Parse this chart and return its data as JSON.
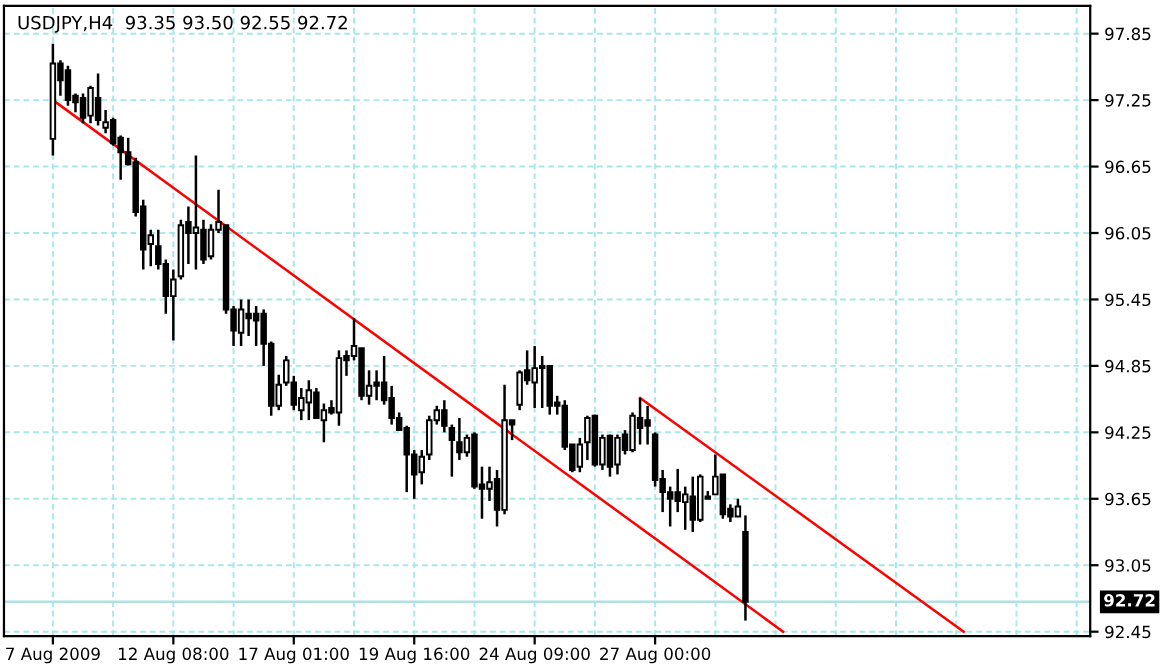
{
  "chart_data": {
    "type": "candlestick",
    "title": "USDJPY,H4  93.35 93.50 92.55 92.72",
    "categories": [
      "7 Aug 2009",
      null,
      null,
      null,
      null,
      null,
      null,
      null,
      null,
      null,
      null,
      null,
      null,
      null,
      null,
      null,
      "12 Aug 08:00",
      null,
      null,
      null,
      null,
      null,
      null,
      null,
      null,
      null,
      null,
      null,
      null,
      null,
      null,
      null,
      "17 Aug 01:00",
      null,
      null,
      null,
      null,
      null,
      null,
      null,
      null,
      null,
      null,
      null,
      null,
      null,
      null,
      null,
      "19 Aug 16:00",
      null,
      null,
      null,
      null,
      null,
      null,
      null,
      null,
      null,
      null,
      null,
      null,
      null,
      null,
      null,
      "24 Aug 09:00",
      null,
      null,
      null,
      null,
      null,
      null,
      null,
      null,
      null,
      null,
      null,
      null,
      null,
      null,
      null,
      "27 Aug 00:00",
      null,
      null,
      null,
      null,
      null,
      null,
      null,
      null,
      null,
      null,
      null,
      null,
      null,
      null,
      null,
      null,
      null,
      null,
      null,
      null,
      null,
      null,
      null,
      null,
      null,
      null,
      null,
      null,
      null,
      null,
      null,
      null,
      null,
      null,
      null,
      null,
      null,
      null,
      null,
      null,
      null,
      null,
      null,
      null,
      null,
      null,
      null,
      null,
      null,
      null,
      null,
      null,
      null,
      null,
      null,
      null,
      null
    ],
    "ohlc": [
      [
        96.9,
        97.76,
        96.75,
        97.58
      ],
      [
        97.58,
        97.61,
        97.29,
        97.43
      ],
      [
        97.52,
        97.56,
        97.2,
        97.25
      ],
      [
        97.29,
        97.31,
        97.14,
        97.23
      ],
      [
        97.27,
        97.31,
        97.04,
        97.09
      ],
      [
        97.11,
        97.38,
        97.04,
        97.36
      ],
      [
        97.27,
        97.49,
        97.02,
        97.07
      ],
      [
        97.0,
        97.16,
        96.95,
        97.05
      ],
      [
        97.07,
        97.09,
        96.84,
        96.86
      ],
      [
        96.91,
        96.93,
        96.53,
        96.78
      ],
      [
        96.78,
        96.91,
        96.66,
        96.67
      ],
      [
        96.69,
        96.73,
        96.2,
        96.24
      ],
      [
        96.29,
        96.35,
        95.72,
        95.9
      ],
      [
        95.95,
        96.08,
        95.75,
        96.03
      ],
      [
        95.93,
        96.08,
        95.72,
        95.77
      ],
      [
        95.77,
        95.81,
        95.32,
        95.48
      ],
      [
        95.48,
        95.72,
        95.08,
        95.63
      ],
      [
        95.66,
        96.17,
        95.63,
        96.12
      ],
      [
        96.15,
        96.29,
        95.77,
        96.05
      ],
      [
        96.05,
        96.75,
        95.72,
        96.1
      ],
      [
        96.08,
        96.17,
        95.77,
        95.81
      ],
      [
        95.84,
        96.13,
        95.81,
        96.08
      ],
      [
        96.08,
        96.44,
        96.05,
        96.15
      ],
      [
        96.12,
        96.12,
        95.32,
        95.36
      ],
      [
        95.36,
        95.39,
        95.03,
        95.17
      ],
      [
        95.15,
        95.45,
        95.03,
        95.36
      ],
      [
        95.32,
        95.45,
        95.12,
        95.28
      ],
      [
        95.32,
        95.39,
        95.03,
        95.26
      ],
      [
        95.32,
        95.36,
        94.85,
        95.05
      ],
      [
        95.05,
        95.07,
        94.4,
        94.49
      ],
      [
        94.49,
        94.77,
        94.45,
        94.68
      ],
      [
        94.7,
        94.94,
        94.67,
        94.9
      ],
      [
        94.7,
        94.76,
        94.45,
        94.5
      ],
      [
        94.45,
        94.65,
        94.36,
        94.56
      ],
      [
        94.52,
        94.72,
        94.36,
        94.63
      ],
      [
        94.61,
        94.65,
        94.38,
        94.38
      ],
      [
        94.36,
        94.51,
        94.16,
        94.45
      ],
      [
        94.47,
        94.54,
        94.41,
        94.43
      ],
      [
        94.43,
        94.99,
        94.31,
        94.92
      ],
      [
        94.94,
        94.99,
        94.76,
        94.9
      ],
      [
        94.94,
        95.28,
        94.9,
        95.03
      ],
      [
        95.01,
        95.01,
        94.54,
        94.58
      ],
      [
        94.58,
        94.81,
        94.5,
        94.67
      ],
      [
        94.7,
        94.81,
        94.54,
        94.67
      ],
      [
        94.7,
        94.94,
        94.5,
        94.54
      ],
      [
        94.56,
        94.67,
        94.32,
        94.38
      ],
      [
        94.38,
        94.43,
        94.27,
        94.27
      ],
      [
        94.29,
        94.31,
        93.71,
        94.05
      ],
      [
        94.05,
        94.09,
        93.65,
        93.87
      ],
      [
        93.89,
        94.09,
        93.78,
        94.03
      ],
      [
        94.05,
        94.4,
        94.0,
        94.36
      ],
      [
        94.36,
        94.49,
        94.32,
        94.45
      ],
      [
        94.45,
        94.54,
        94.25,
        94.31
      ],
      [
        94.29,
        94.32,
        93.85,
        94.18
      ],
      [
        94.16,
        94.38,
        94.0,
        94.07
      ],
      [
        94.07,
        94.23,
        94.03,
        94.2
      ],
      [
        94.23,
        94.25,
        93.74,
        93.76
      ],
      [
        93.78,
        93.94,
        93.47,
        93.74
      ],
      [
        93.74,
        93.94,
        93.63,
        93.8
      ],
      [
        93.83,
        93.91,
        93.4,
        93.55
      ],
      [
        93.55,
        94.68,
        93.51,
        94.36
      ],
      [
        94.36,
        94.36,
        94.18,
        94.32
      ],
      [
        94.5,
        94.81,
        94.45,
        94.79
      ],
      [
        94.81,
        94.99,
        94.68,
        94.72
      ],
      [
        94.7,
        95.03,
        94.47,
        94.83
      ],
      [
        94.85,
        94.94,
        94.47,
        94.83
      ],
      [
        94.85,
        94.85,
        94.41,
        94.49
      ],
      [
        94.52,
        94.58,
        94.41,
        94.49
      ],
      [
        94.49,
        94.54,
        94.09,
        94.12
      ],
      [
        94.14,
        94.14,
        93.89,
        93.91
      ],
      [
        93.94,
        94.2,
        93.89,
        94.14
      ],
      [
        94.16,
        94.4,
        94.0,
        94.38
      ],
      [
        94.4,
        94.41,
        93.94,
        93.96
      ],
      [
        93.96,
        94.23,
        93.91,
        94.2
      ],
      [
        94.22,
        94.23,
        93.85,
        93.94
      ],
      [
        93.96,
        94.23,
        93.87,
        94.2
      ],
      [
        94.23,
        94.27,
        94.05,
        94.09
      ],
      [
        94.09,
        94.43,
        94.07,
        94.4
      ],
      [
        94.38,
        94.56,
        94.14,
        94.29
      ],
      [
        94.36,
        94.49,
        94.14,
        94.31
      ],
      [
        94.23,
        94.25,
        93.76,
        93.82
      ],
      [
        93.83,
        93.91,
        93.53,
        93.71
      ],
      [
        93.71,
        93.76,
        93.4,
        93.65
      ],
      [
        93.71,
        93.92,
        93.53,
        93.63
      ],
      [
        93.62,
        93.76,
        93.37,
        93.69
      ],
      [
        93.67,
        93.85,
        93.35,
        93.46
      ],
      [
        93.46,
        93.87,
        93.44,
        93.85
      ],
      [
        93.67,
        93.72,
        93.65,
        93.65
      ],
      [
        93.69,
        94.05,
        93.69,
        93.85
      ],
      [
        93.87,
        93.87,
        93.47,
        93.51
      ],
      [
        93.56,
        93.6,
        93.44,
        93.49
      ],
      [
        93.49,
        93.65,
        93.49,
        93.58
      ],
      [
        93.35,
        93.5,
        92.55,
        92.72
      ],
      null,
      null,
      null,
      null,
      null,
      null,
      null,
      null,
      null,
      null,
      null,
      null,
      null,
      null,
      null,
      null,
      null,
      null,
      null,
      null,
      null,
      null,
      null,
      null,
      null,
      null,
      null,
      null,
      null,
      null,
      null,
      null,
      null,
      null,
      null,
      null,
      null,
      null,
      null,
      null,
      null,
      null,
      null,
      null,
      null
    ],
    "series": [
      {
        "type": "line",
        "color": "#ff0000",
        "values": [
          97.25,
          null,
          null,
          null,
          null,
          null,
          null,
          null,
          null,
          null,
          null,
          null,
          null,
          null,
          null,
          null,
          null,
          null,
          null,
          null,
          null,
          null,
          null,
          null,
          null,
          null,
          null,
          null,
          null,
          null,
          null,
          null,
          null,
          null,
          null,
          null,
          null,
          null,
          null,
          null,
          null,
          null,
          null,
          null,
          null,
          null,
          null,
          null,
          null,
          null,
          null,
          null,
          null,
          null,
          null,
          null,
          null,
          null,
          null,
          null,
          null,
          null,
          null,
          null,
          null,
          null,
          null,
          null,
          null,
          null,
          null,
          null,
          null,
          null,
          null,
          null,
          null,
          null,
          null,
          null,
          null,
          null,
          null,
          null,
          null,
          null,
          null,
          null,
          null,
          null,
          null,
          null,
          null,
          null,
          null,
          null,
          null,
          92.45,
          null,
          null,
          null,
          null,
          null,
          null,
          null,
          null,
          null,
          null,
          null,
          null,
          null,
          null,
          null,
          null,
          null,
          null,
          null,
          null,
          null,
          null,
          null,
          null,
          null,
          null,
          null,
          null,
          null,
          null,
          null,
          null,
          null,
          null,
          null,
          null,
          null,
          null,
          null,
          null
        ]
      },
      {
        "type": "line",
        "color": "#ff0000",
        "values": [
          null,
          null,
          null,
          null,
          null,
          null,
          null,
          null,
          null,
          null,
          null,
          null,
          null,
          null,
          null,
          null,
          null,
          null,
          null,
          null,
          null,
          null,
          null,
          null,
          null,
          null,
          null,
          null,
          null,
          null,
          null,
          null,
          null,
          null,
          null,
          null,
          null,
          null,
          null,
          null,
          null,
          null,
          null,
          null,
          null,
          null,
          null,
          null,
          null,
          null,
          null,
          null,
          null,
          null,
          null,
          null,
          null,
          null,
          null,
          null,
          null,
          null,
          null,
          null,
          null,
          null,
          null,
          null,
          null,
          null,
          null,
          null,
          null,
          null,
          null,
          null,
          null,
          null,
          94.56,
          null,
          null,
          null,
          null,
          null,
          null,
          null,
          null,
          null,
          null,
          null,
          null,
          null,
          null,
          null,
          null,
          null,
          null,
          null,
          null,
          null,
          null,
          null,
          null,
          null,
          null,
          null,
          null,
          null,
          null,
          null,
          null,
          null,
          null,
          null,
          null,
          null,
          null,
          null,
          null,
          null,
          null,
          92.45,
          null,
          null,
          null,
          null,
          null,
          null,
          null,
          null,
          null,
          null,
          null,
          null,
          null,
          null,
          null,
          null
        ]
      }
    ],
    "ref_lines": [
      {
        "axis": "y",
        "value": 92.72,
        "label": "92.72",
        "color": "#b0e0e0"
      }
    ],
    "ylim": [
      92.41,
      98.1
    ],
    "yticks": [
      92.45,
      93.05,
      93.65,
      94.25,
      94.85,
      95.45,
      96.05,
      96.65,
      97.25,
      97.85
    ],
    "grid": true
  }
}
